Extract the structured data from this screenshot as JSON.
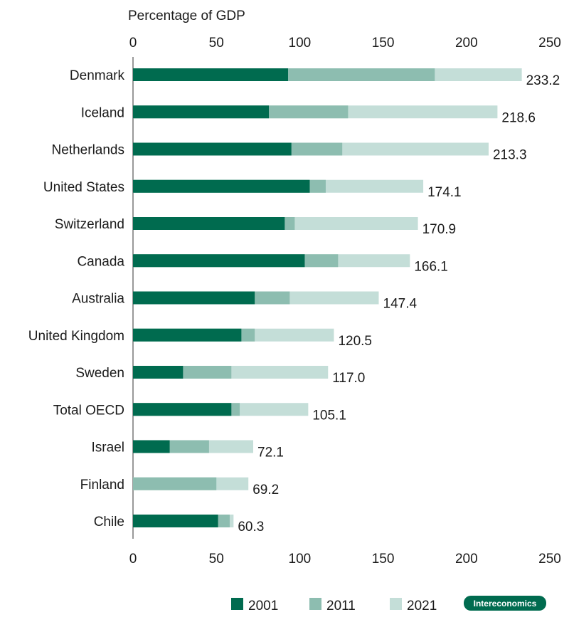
{
  "chart_data": {
    "type": "bar",
    "orientation": "horizontal",
    "title": "",
    "xlabel": "Percentage of GDP",
    "ylabel": "",
    "xlim": [
      0,
      250
    ],
    "xticks": [
      0,
      50,
      100,
      150,
      200,
      250
    ],
    "grid": false,
    "legend_position": "bottom",
    "categories": [
      "Denmark",
      "Iceland",
      "Netherlands",
      "United States",
      "Switzerland",
      "Canada",
      "Australia",
      "United Kingdom",
      "Sweden",
      "Total OECD",
      "Israel",
      "Finland",
      "Chile"
    ],
    "series": [
      {
        "name": "2001",
        "color": "#006b4f",
        "values": [
          93,
          81.5,
          95,
          106,
          91,
          103,
          73,
          65,
          30,
          59,
          22,
          null,
          51
        ]
      },
      {
        "name": "2011",
        "color": "#8dbdb0",
        "values": [
          181,
          129,
          125.5,
          115.6,
          97,
          123,
          94,
          73,
          59,
          64,
          45.6,
          50,
          58
        ]
      },
      {
        "name": "2021",
        "color": "#c4ded8",
        "values": [
          233.2,
          218.6,
          213.3,
          174.1,
          170.9,
          166.1,
          147.4,
          120.5,
          117.0,
          105.1,
          72.1,
          69.2,
          60.3
        ]
      }
    ],
    "data_labels": [
      "233.2",
      "218.6",
      "213.3",
      "174.1",
      "170.9",
      "166.1",
      "147.4",
      "120.5",
      "117.0",
      "105.1",
      "72.1",
      "69.2",
      "60.3"
    ]
  },
  "brand": "Intereconomics"
}
